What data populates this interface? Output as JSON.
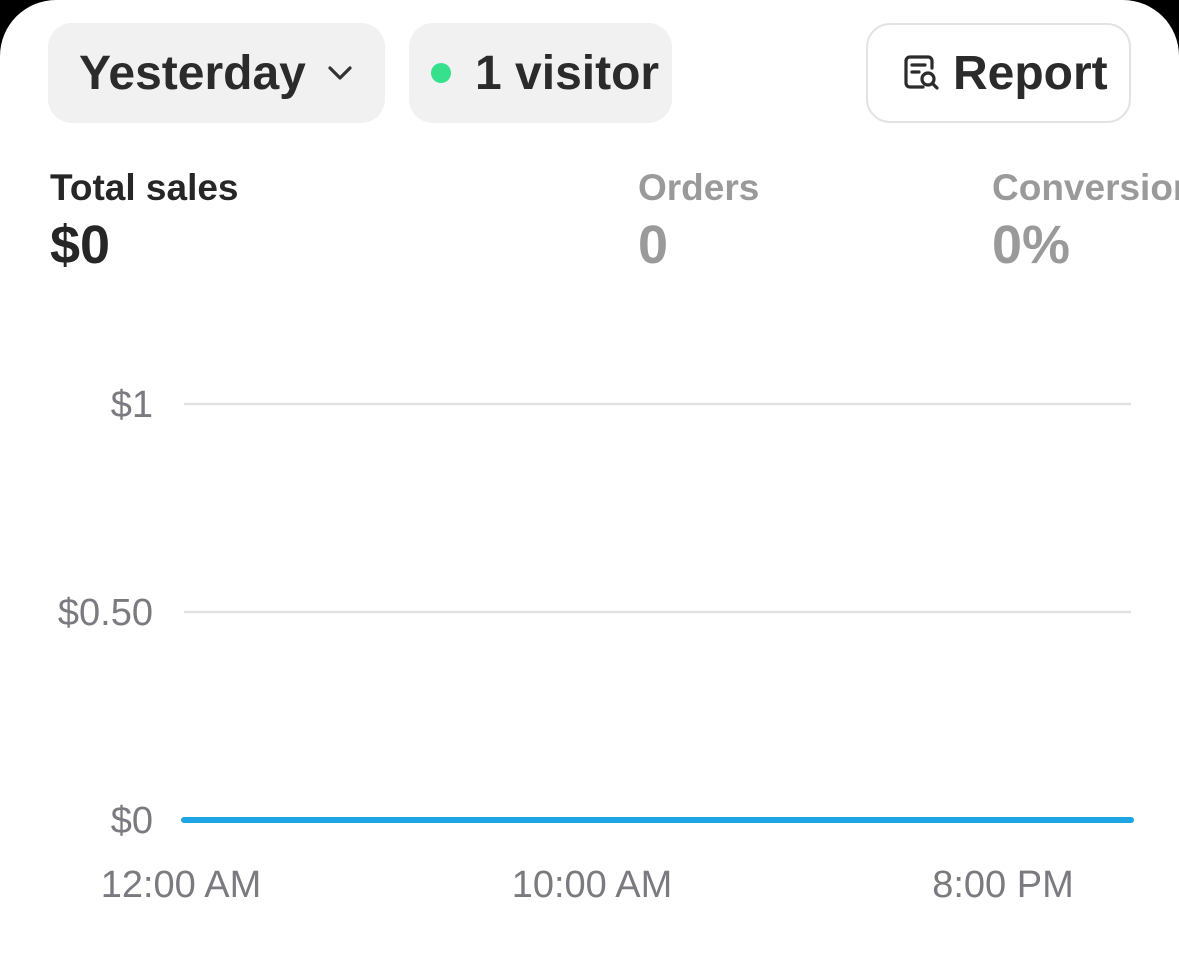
{
  "filters": {
    "date_label": "Yesterday",
    "visitors_label": "1 visitor",
    "report_label": "Report"
  },
  "colors": {
    "live_dot": "#36e08d",
    "series_line": "#1ea4e3",
    "gridline": "#e2e2e2"
  },
  "icons": {
    "dropdown": "chevron-down-icon",
    "report": "report-search-icon"
  },
  "metrics": [
    {
      "label": "Total sales",
      "value": "$0",
      "active": true
    },
    {
      "label": "Orders",
      "value": "0",
      "active": false
    },
    {
      "label": "Conversion",
      "value": "0%",
      "active": false
    }
  ],
  "chart_data": {
    "type": "line",
    "x_tick_labels": [
      "12:00 AM",
      "10:00 AM",
      "8:00 PM"
    ],
    "y_tick_labels": [
      "$1",
      "$0.50",
      "$0"
    ],
    "y_ticks": [
      1,
      0.5,
      0
    ],
    "ylim": [
      0,
      1
    ],
    "x": [
      0,
      23
    ],
    "series": [
      {
        "values": [
          0,
          0
        ]
      }
    ],
    "grid": true
  }
}
